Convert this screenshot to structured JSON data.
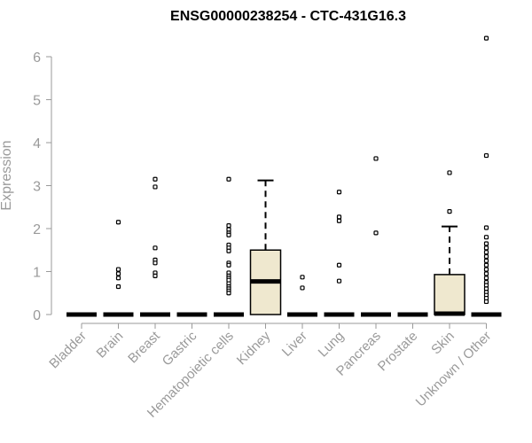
{
  "chart_data": {
    "type": "box",
    "title": "ENSG00000238254 - CTC-431G16.3",
    "xlabel": "",
    "ylabel": "Expression",
    "ylim": [
      0,
      6.6
    ],
    "yticks": [
      0,
      1,
      2,
      3,
      4,
      5,
      6
    ],
    "categories": [
      "Bladder",
      "Brain",
      "Breast",
      "Gastric",
      "Hematopoietic cells",
      "Kidney",
      "Liver",
      "Lung",
      "Pancreas",
      "Prostate",
      "Skin",
      "Unknown / Other"
    ],
    "box_fill": "#efe8cf",
    "boxes": [
      {
        "category": "Bladder",
        "q1": 0,
        "median": 0,
        "q3": 0,
        "whisker_low": 0,
        "whisker_high": 0,
        "outliers": []
      },
      {
        "category": "Brain",
        "q1": 0,
        "median": 0,
        "q3": 0,
        "whisker_low": 0,
        "whisker_high": 0,
        "outliers": [
          2.15,
          1.05,
          0.95,
          0.85,
          0.65
        ]
      },
      {
        "category": "Breast",
        "q1": 0,
        "median": 0,
        "q3": 0,
        "whisker_low": 0,
        "whisker_high": 0,
        "outliers": [
          3.15,
          2.97,
          1.55,
          1.27,
          1.2,
          0.97,
          0.9
        ]
      },
      {
        "category": "Gastric",
        "q1": 0,
        "median": 0,
        "q3": 0,
        "whisker_low": 0,
        "whisker_high": 0,
        "outliers": []
      },
      {
        "category": "Hematopoietic cells",
        "q1": 0,
        "median": 0,
        "q3": 0,
        "whisker_low": 0,
        "whisker_high": 0,
        "outliers": [
          3.15,
          2.07,
          1.98,
          1.9,
          1.85,
          1.62,
          1.55,
          1.48,
          1.2,
          1.15,
          0.97,
          0.9,
          0.85,
          0.8,
          0.72,
          0.65,
          0.6,
          0.55,
          0.5
        ]
      },
      {
        "category": "Kidney",
        "q1": 0,
        "median": 0.77,
        "q3": 1.5,
        "whisker_low": 0,
        "whisker_high": 3.12,
        "outliers": []
      },
      {
        "category": "Liver",
        "q1": 0,
        "median": 0,
        "q3": 0,
        "whisker_low": 0,
        "whisker_high": 0,
        "outliers": [
          0.87,
          0.62
        ]
      },
      {
        "category": "Lung",
        "q1": 0,
        "median": 0,
        "q3": 0,
        "whisker_low": 0,
        "whisker_high": 0,
        "outliers": [
          2.85,
          2.27,
          2.18,
          1.15,
          0.78
        ]
      },
      {
        "category": "Pancreas",
        "q1": 0,
        "median": 0,
        "q3": 0,
        "whisker_low": 0,
        "whisker_high": 0,
        "outliers": [
          3.63,
          1.9
        ]
      },
      {
        "category": "Prostate",
        "q1": 0,
        "median": 0,
        "q3": 0,
        "whisker_low": 0,
        "whisker_high": 0,
        "outliers": []
      },
      {
        "category": "Skin",
        "q1": 0,
        "median": 0.02,
        "q3": 0.93,
        "whisker_low": 0,
        "whisker_high": 2.05,
        "outliers": [
          3.3,
          2.4
        ]
      },
      {
        "category": "Unknown / Other",
        "q1": 0,
        "median": 0,
        "q3": 0,
        "whisker_low": 0,
        "whisker_high": 0,
        "outliers": [
          6.43,
          3.7,
          2.02,
          1.8,
          1.65,
          1.55,
          1.45,
          1.35,
          1.25,
          1.15,
          1.05,
          0.95,
          0.85,
          0.75,
          0.68,
          0.6,
          0.52,
          0.45,
          0.38,
          0.3
        ]
      }
    ],
    "grid": false
  }
}
